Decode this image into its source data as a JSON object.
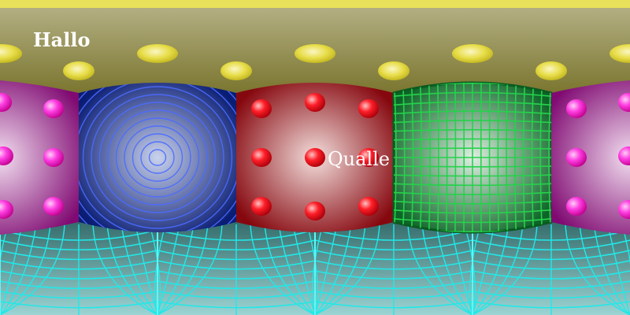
{
  "labels": {
    "top_left": "Hallo",
    "center": "Qualle"
  },
  "colors": {
    "ceiling_band": "#e8e25a",
    "ceiling_top": "#b8b48a",
    "ceiling_bottom": "#6f6a1e",
    "ceiling_dot": "#e6df4a",
    "wall_purple": "#8a0f7a",
    "wall_purple_center": "#e9c9e6",
    "dot_magenta": "#ff22dd",
    "wall_blue": "#0a1f7a",
    "wall_blue_center": "#c3cde8",
    "ring_blue": "#3e5bff",
    "wall_red": "#8c0a10",
    "wall_red_center": "#f0d4d2",
    "dot_red": "#ff1a22",
    "wall_green": "#0f6e2a",
    "wall_green_center": "#d5e6d8",
    "grid_green": "#22d04a",
    "floor_top": "#2a6a6a",
    "floor_bottom": "#8cc8c8",
    "floor_grid": "#22e8e8"
  },
  "panels": [
    {
      "name": "panel-purple-left",
      "theme": "purple-dots"
    },
    {
      "name": "panel-blue",
      "theme": "blue-rings"
    },
    {
      "name": "panel-red",
      "theme": "red-dots"
    },
    {
      "name": "panel-green",
      "theme": "green-grid"
    },
    {
      "name": "panel-purple-right",
      "theme": "purple-dots"
    }
  ]
}
